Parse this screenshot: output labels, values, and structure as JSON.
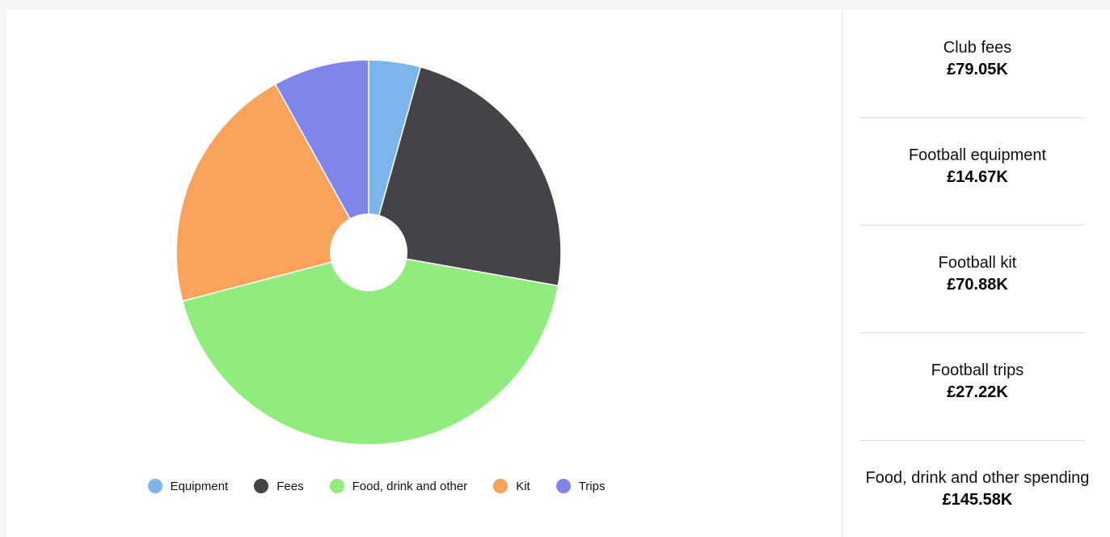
{
  "chart_data": {
    "type": "pie",
    "title": "",
    "donut": true,
    "slices": [
      {
        "label": "Equipment",
        "value": 14.67,
        "color": "#7cb5ec"
      },
      {
        "label": "Fees",
        "value": 79.05,
        "color": "#434348"
      },
      {
        "label": "Food, drink and other",
        "value": 145.58,
        "color": "#90ed7d"
      },
      {
        "label": "Kit",
        "value": 70.88,
        "color": "#f7a35c"
      },
      {
        "label": "Trips",
        "value": 27.22,
        "color": "#8085e9"
      }
    ],
    "legend": [
      {
        "label": "Equipment",
        "color": "#7cb5ec"
      },
      {
        "label": "Fees",
        "color": "#434348"
      },
      {
        "label": "Food, drink and other",
        "color": "#90ed7d"
      },
      {
        "label": "Kit",
        "color": "#f7a35c"
      },
      {
        "label": "Trips",
        "color": "#8085e9"
      }
    ],
    "legend_position": "bottom"
  },
  "stats": [
    {
      "label": "Club fees",
      "value": "£79.05K"
    },
    {
      "label": "Football equipment",
      "value": "£14.67K"
    },
    {
      "label": "Football kit",
      "value": "£70.88K"
    },
    {
      "label": "Football trips",
      "value": "£27.22K"
    },
    {
      "label": "Food, drink and other spending",
      "value": "£145.58K"
    }
  ]
}
